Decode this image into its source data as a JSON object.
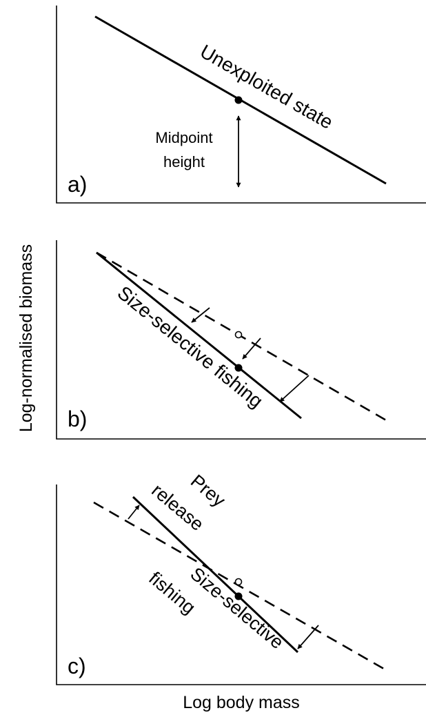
{
  "y_axis_label": "Log-normalised biomass",
  "x_axis_label": "Log body mass",
  "panels": {
    "a": {
      "letter": "a)",
      "line_label": "Unexploited state",
      "midpoint_label_line1": "Midpoint",
      "midpoint_label_line2": "height"
    },
    "b": {
      "letter": "b)",
      "line_label": "Size-selective fishing"
    },
    "c": {
      "letter": "c)",
      "prey_label_line1": "Prey",
      "prey_label_line2": "release",
      "fishing_label_line1": "Size-selective",
      "fishing_label_line2": "fishing"
    }
  },
  "colors": {
    "ink": "#000000",
    "background": "#ffffff"
  }
}
